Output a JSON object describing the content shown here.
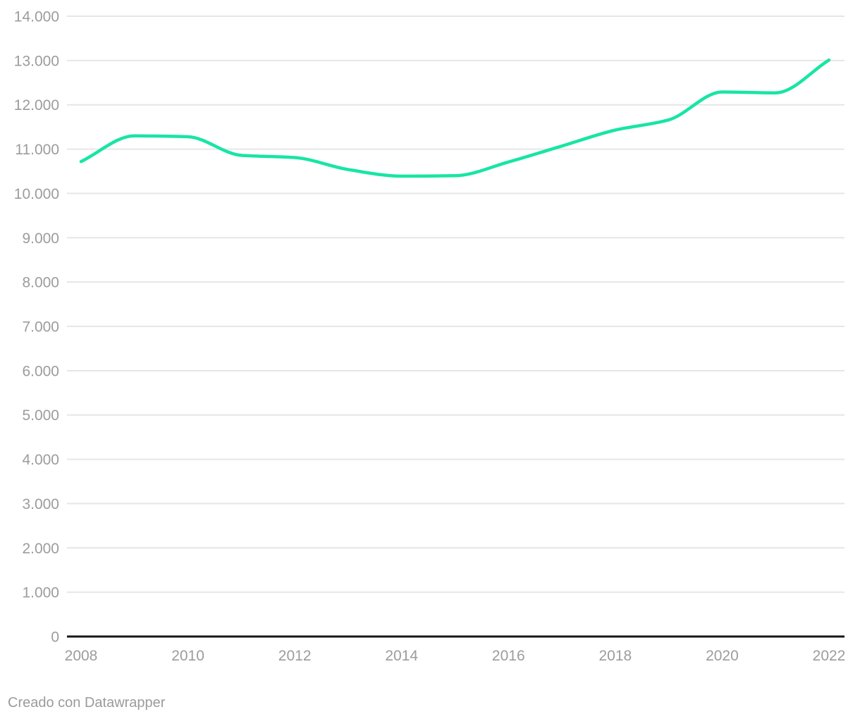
{
  "footer": {
    "credit": "Creado con Datawrapper"
  },
  "chart_data": {
    "type": "line",
    "title": "",
    "xlabel": "",
    "ylabel": "",
    "x": [
      2008,
      2009,
      2010,
      2011,
      2012,
      2013,
      2014,
      2015,
      2016,
      2017,
      2018,
      2019,
      2020,
      2021,
      2022
    ],
    "series": [
      {
        "name": "serie",
        "values": [
          10720,
          11300,
          11280,
          10860,
          10810,
          10540,
          10390,
          10400,
          10710,
          11070,
          11430,
          11660,
          12290,
          12270,
          13010
        ]
      }
    ],
    "xlim": [
      2008,
      2022
    ],
    "ylim": [
      0,
      14000
    ],
    "x_ticks": [
      {
        "value": 2008,
        "label": "2008"
      },
      {
        "value": 2010,
        "label": "2010"
      },
      {
        "value": 2012,
        "label": "2012"
      },
      {
        "value": 2014,
        "label": "2014"
      },
      {
        "value": 2016,
        "label": "2016"
      },
      {
        "value": 2018,
        "label": "2018"
      },
      {
        "value": 2020,
        "label": "2020"
      },
      {
        "value": 2022,
        "label": "2022"
      }
    ],
    "y_ticks": [
      {
        "value": 0,
        "label": "0"
      },
      {
        "value": 1000,
        "label": "1.000"
      },
      {
        "value": 2000,
        "label": "2.000"
      },
      {
        "value": 3000,
        "label": "3.000"
      },
      {
        "value": 4000,
        "label": "4.000"
      },
      {
        "value": 5000,
        "label": "5.000"
      },
      {
        "value": 6000,
        "label": "6.000"
      },
      {
        "value": 7000,
        "label": "7.000"
      },
      {
        "value": 8000,
        "label": "8.000"
      },
      {
        "value": 9000,
        "label": "9.000"
      },
      {
        "value": 10000,
        "label": "10.000"
      },
      {
        "value": 11000,
        "label": "11.000"
      },
      {
        "value": 12000,
        "label": "12.000"
      },
      {
        "value": 13000,
        "label": "13.000"
      },
      {
        "value": 14000,
        "label": "14.000"
      }
    ],
    "grid": true,
    "legend_position": "none",
    "line_interpolation": "monotone",
    "colors": {
      "line": "#18e5a4",
      "grid": "#e6e6e6",
      "axis": "#161616",
      "tick_label": "#9c9c9c",
      "footer_text": "#9b9b9b",
      "background": "#ffffff"
    }
  }
}
